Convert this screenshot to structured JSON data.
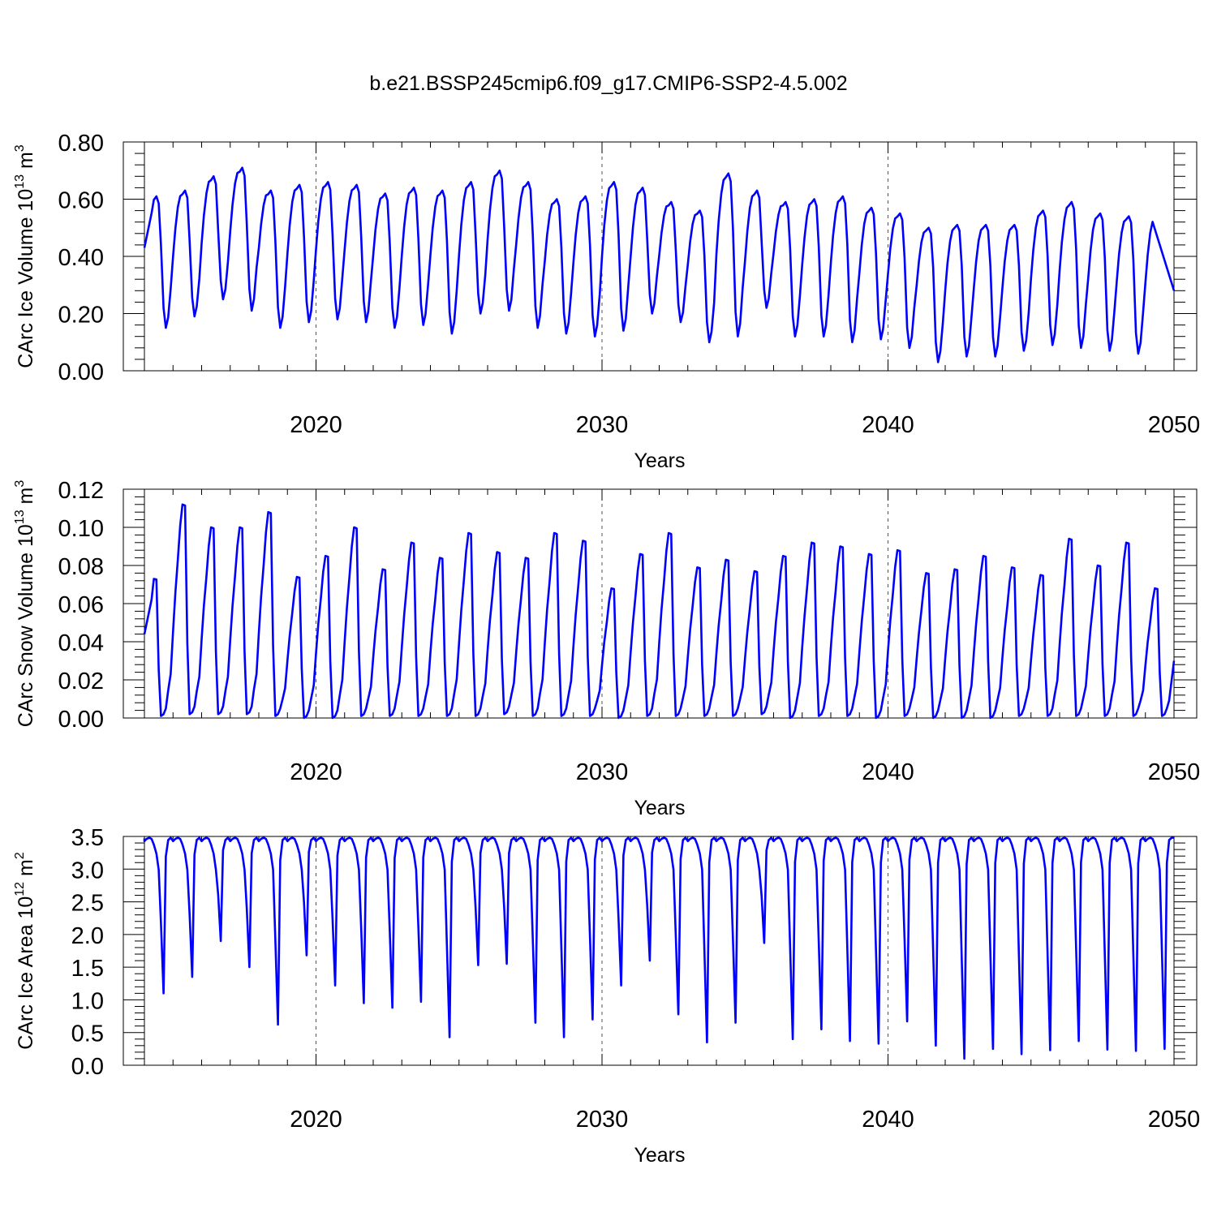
{
  "title": "b.e21.BSSP245cmip6.f09_g17.CMIP6-SSP2-4.5.002",
  "line_color": "#0000ff",
  "chart_data": [
    {
      "type": "line",
      "ylabel_main": "CArc Ice Volume 10",
      "ylabel_exp": "13",
      "ylabel_unit": " m",
      "ylabel_unit_exp": "3",
      "xlabel": "Years",
      "xlim": [
        2014.0,
        2050.0
      ],
      "ylim": [
        0.0,
        0.8
      ],
      "yticks": [
        0.0,
        0.2,
        0.4,
        0.6,
        0.8
      ],
      "ytick_labels": [
        "0.00",
        "0.20",
        "0.40",
        "0.60",
        "0.80"
      ],
      "xticks": [
        2020,
        2030,
        2040,
        2050
      ],
      "xtick_labels": [
        "2020",
        "2030",
        "2040",
        "2050"
      ],
      "series": [
        {
          "peaks": [
            0.61,
            0.63,
            0.68,
            0.71,
            0.63,
            0.65,
            0.66,
            0.65,
            0.62,
            0.64,
            0.63,
            0.66,
            0.7,
            0.66,
            0.6,
            0.61,
            0.66,
            0.64,
            0.59,
            0.56,
            0.69,
            0.63,
            0.59,
            0.6,
            0.61,
            0.57,
            0.55,
            0.5,
            0.51,
            0.51,
            0.51,
            0.56,
            0.59,
            0.55,
            0.54
          ],
          "troughs": [
            0.15,
            0.19,
            0.25,
            0.21,
            0.15,
            0.17,
            0.18,
            0.17,
            0.15,
            0.16,
            0.13,
            0.2,
            0.21,
            0.15,
            0.13,
            0.12,
            0.14,
            0.2,
            0.17,
            0.1,
            0.12,
            0.22,
            0.12,
            0.12,
            0.1,
            0.11,
            0.08,
            0.03,
            0.05,
            0.05,
            0.07,
            0.09,
            0.08,
            0.07,
            0.06
          ],
          "start": 0.43,
          "end": 0.28
        }
      ]
    },
    {
      "type": "line",
      "ylabel_main": "CArc Snow Volume 10",
      "ylabel_exp": "13",
      "ylabel_unit": " m",
      "ylabel_unit_exp": "3",
      "xlabel": "Years",
      "xlim": [
        2014.0,
        2050.0
      ],
      "ylim": [
        0.0,
        0.12
      ],
      "yticks": [
        0.0,
        0.02,
        0.04,
        0.06,
        0.08,
        0.1,
        0.12
      ],
      "ytick_labels": [
        "0.00",
        "0.02",
        "0.04",
        "0.06",
        "0.08",
        "0.10",
        "0.12"
      ],
      "xticks": [
        2020,
        2030,
        2040,
        2050
      ],
      "xtick_labels": [
        "2020",
        "2030",
        "2040",
        "2050"
      ],
      "series": [
        {
          "peaks": [
            0.073,
            0.112,
            0.1,
            0.1,
            0.108,
            0.074,
            0.085,
            0.1,
            0.078,
            0.092,
            0.084,
            0.097,
            0.087,
            0.084,
            0.097,
            0.093,
            0.068,
            0.086,
            0.097,
            0.079,
            0.083,
            0.077,
            0.085,
            0.092,
            0.09,
            0.086,
            0.088,
            0.076,
            0.078,
            0.085,
            0.079,
            0.075,
            0.094,
            0.08,
            0.092,
            0.068
          ],
          "troughs": [
            0.001,
            0.002,
            0.002,
            0.002,
            0.001,
            0.0,
            0.0,
            0.001,
            0.001,
            0.001,
            0.001,
            0.001,
            0.002,
            0.001,
            0.001,
            0.001,
            0.0,
            0.001,
            0.001,
            0.001,
            0.001,
            0.002,
            0.0,
            0.001,
            0.001,
            0.0,
            0.001,
            0.0,
            0.0,
            0.0,
            0.001,
            0.001,
            0.001,
            0.001,
            0.001
          ],
          "start": 0.044,
          "end": 0.03
        }
      ]
    },
    {
      "type": "line",
      "ylabel_main": "CArc Ice Area 10",
      "ylabel_exp": "12",
      "ylabel_unit": " m",
      "ylabel_unit_exp": "2",
      "xlabel": "Years",
      "xlim": [
        2014.0,
        2050.0
      ],
      "ylim": [
        0.0,
        3.5
      ],
      "yticks": [
        0.0,
        0.5,
        1.0,
        1.5,
        2.0,
        2.5,
        3.0,
        3.5
      ],
      "ytick_labels": [
        "0.0",
        "0.5",
        "1.0",
        "1.5",
        "2.0",
        "2.5",
        "3.0",
        "3.5"
      ],
      "xticks": [
        2020,
        2030,
        2040,
        2050
      ],
      "xtick_labels": [
        "2020",
        "2030",
        "2040",
        "2050"
      ],
      "series": [
        {
          "max": 3.48,
          "troughs": [
            1.1,
            1.35,
            1.9,
            1.5,
            0.62,
            1.68,
            1.22,
            0.95,
            0.88,
            0.97,
            0.43,
            1.53,
            1.55,
            0.65,
            0.43,
            0.7,
            1.22,
            1.6,
            0.78,
            0.35,
            0.65,
            1.87,
            0.4,
            0.55,
            0.37,
            0.33,
            0.67,
            0.3,
            0.1,
            0.25,
            0.17,
            0.23,
            0.37,
            0.24,
            0.22,
            0.25
          ],
          "start": 3.47,
          "end": 3.48
        }
      ]
    }
  ]
}
